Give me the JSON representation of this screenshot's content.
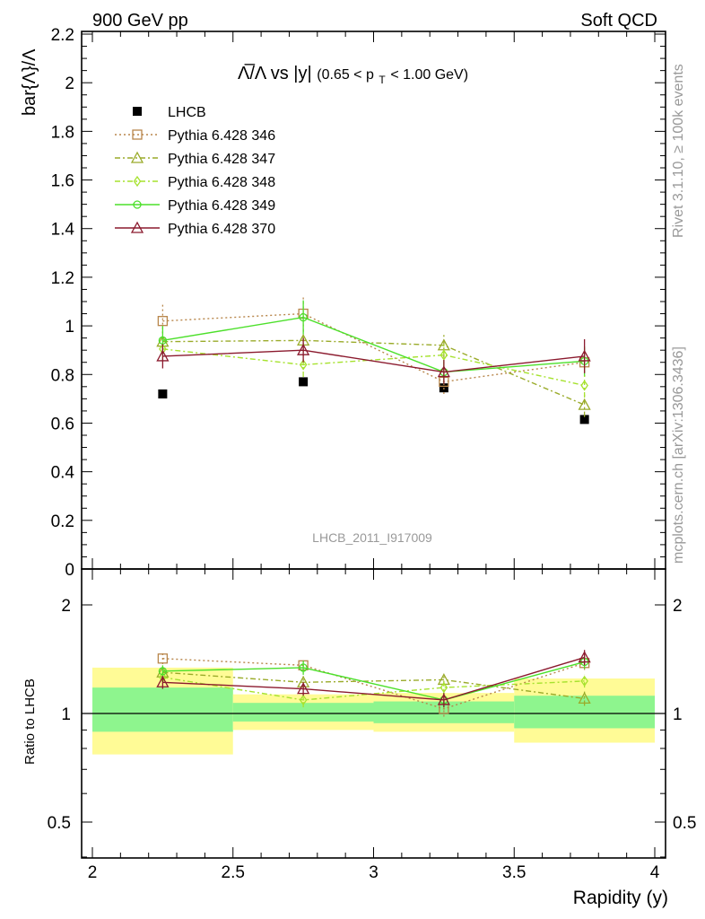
{
  "header": {
    "left": "900 GeV pp",
    "right": "Soft QCD"
  },
  "side_text": {
    "rivet": "Rivet 3.1.10, ≥ 100k events",
    "mcplots": "mcplots.cern.ch [arXiv:1306.3436]"
  },
  "chart_data": [
    {
      "type": "scatter",
      "panel": "main",
      "title": "Λ̅/Λ vs |y|",
      "title_sub": "(0.65 < p",
      "title_sub_t": "T",
      "title_sub_end": " < 1.00 GeV)",
      "ylabel": "bar{Λ}/Λ",
      "watermark": "LHCB_2011_I917009",
      "xlim": [
        2,
        4
      ],
      "ylim": [
        0,
        2.2
      ],
      "ytick_labels": [
        "0",
        "0.2",
        "0.4",
        "0.6",
        "0.8",
        "1",
        "1.2",
        "1.4",
        "1.6",
        "1.8",
        "2",
        "2.2"
      ],
      "x": [
        2.25,
        2.75,
        3.25,
        3.75
      ],
      "legend_position": "top-left",
      "series": [
        {
          "name": "LHCB",
          "marker": "filled-square",
          "line": "none",
          "color": "#000000",
          "y": [
            0.72,
            0.77,
            0.745,
            0.615
          ],
          "yerr": [
            0.005,
            0.005,
            0.005,
            0.01
          ]
        },
        {
          "name": "Pythia 6.428 346",
          "marker": "open-square",
          "line": "dotted",
          "color": "#b8864b",
          "y": [
            1.02,
            1.05,
            0.77,
            0.85
          ],
          "yerr": [
            0.07,
            0.07,
            0.05,
            0.06
          ]
        },
        {
          "name": "Pythia 6.428 347",
          "marker": "open-triangle",
          "line": "dashdot",
          "color": "#9aab2a",
          "y": [
            0.935,
            0.94,
            0.92,
            0.675
          ],
          "yerr": [
            0.05,
            0.05,
            0.05,
            0.05
          ]
        },
        {
          "name": "Pythia 6.428 348",
          "marker": "open-diamond",
          "line": "dashdot",
          "color": "#a6e22e",
          "y": [
            0.905,
            0.84,
            0.88,
            0.755
          ],
          "yerr": [
            0.05,
            0.05,
            0.05,
            0.05
          ]
        },
        {
          "name": "Pythia 6.428 349",
          "marker": "open-circle",
          "line": "solid",
          "color": "#4ce02a",
          "y": [
            0.94,
            1.035,
            0.81,
            0.855
          ],
          "yerr": [
            0.06,
            0.07,
            0.05,
            0.06
          ]
        },
        {
          "name": "Pythia 6.428 370",
          "marker": "open-triangle",
          "line": "solid",
          "color": "#8b1a2e",
          "y": [
            0.875,
            0.9,
            0.81,
            0.875
          ],
          "yerr": [
            0.05,
            0.05,
            0.05,
            0.07
          ]
        }
      ]
    },
    {
      "type": "scatter",
      "panel": "ratio",
      "ylabel": "Ratio to LHCB",
      "xlabel": "Rapidity (y)",
      "xlim": [
        2,
        4
      ],
      "ylim": [
        0.4,
        2.5
      ],
      "yscale": "log",
      "ytick_labels": [
        "0.5",
        "1",
        "2"
      ],
      "xtick_labels": [
        "2",
        "2.5",
        "3",
        "3.5",
        "4"
      ],
      "bands": [
        {
          "xmin": 2.0,
          "xmax": 2.5,
          "inner": [
            0.89,
            1.18
          ],
          "outer": [
            0.77,
            1.34
          ]
        },
        {
          "xmin": 2.5,
          "xmax": 3.0,
          "inner": [
            0.95,
            1.07
          ],
          "outer": [
            0.9,
            1.13
          ]
        },
        {
          "xmin": 3.0,
          "xmax": 3.5,
          "inner": [
            0.94,
            1.08
          ],
          "outer": [
            0.89,
            1.14
          ]
        },
        {
          "xmin": 3.5,
          "xmax": 4.0,
          "inner": [
            0.91,
            1.12
          ],
          "outer": [
            0.83,
            1.25
          ]
        }
      ],
      "band_colors": {
        "inner": "#8ef58e",
        "outer": "#fffb96"
      },
      "x": [
        2.25,
        2.75,
        3.25,
        3.75
      ],
      "series": [
        {
          "name": "Pythia 6.428 346",
          "y": [
            1.42,
            1.36,
            1.03,
            1.38
          ],
          "yerr": [
            0.05,
            0.05,
            0.05,
            0.06
          ]
        },
        {
          "name": "Pythia 6.428 347",
          "y": [
            1.3,
            1.22,
            1.24,
            1.1
          ],
          "yerr": [
            0.05,
            0.05,
            0.05,
            0.05
          ]
        },
        {
          "name": "Pythia 6.428 348",
          "y": [
            1.26,
            1.09,
            1.18,
            1.23
          ],
          "yerr": [
            0.05,
            0.05,
            0.05,
            0.05
          ]
        },
        {
          "name": "Pythia 6.428 349",
          "y": [
            1.31,
            1.34,
            1.09,
            1.39
          ],
          "yerr": [
            0.05,
            0.06,
            0.05,
            0.06
          ]
        },
        {
          "name": "Pythia 6.428 370",
          "y": [
            1.22,
            1.17,
            1.09,
            1.43
          ],
          "yerr": [
            0.05,
            0.05,
            0.05,
            0.07
          ]
        }
      ]
    }
  ]
}
